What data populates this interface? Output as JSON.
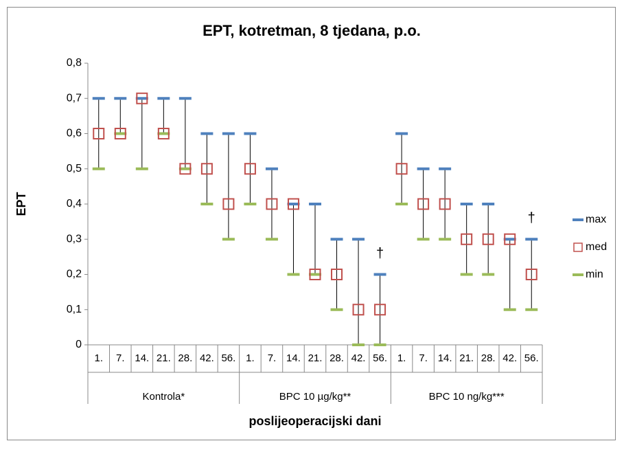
{
  "chart_data": {
    "type": "high-low-median",
    "title": "EPT, kotretman, 8 tjedana, p.o.",
    "y_label": "EPT",
    "x_label": "poslijeoperacijski  dani",
    "categories": [
      "1.",
      "7.",
      "14.",
      "21.",
      "28.",
      "42.",
      "56.",
      "1.",
      "7.",
      "14.",
      "21.",
      "28.",
      "42.",
      "56.",
      "1.",
      "7.",
      "14.",
      "21.",
      "28.",
      "42.",
      "56."
    ],
    "groups": [
      "Kontrola*",
      "BPC 10 µg/kg**",
      "BPC 10 ng/kg***"
    ],
    "series": [
      {
        "name": "max",
        "color": "#4f81bd",
        "values": [
          0.7,
          0.7,
          0.7,
          0.7,
          0.7,
          0.6,
          0.6,
          0.6,
          0.5,
          0.4,
          0.4,
          0.3,
          0.3,
          0.2,
          0.6,
          0.5,
          0.5,
          0.4,
          0.4,
          0.3,
          0.3
        ]
      },
      {
        "name": "med",
        "color": "#c0504d",
        "values": [
          0.6,
          0.6,
          0.7,
          0.6,
          0.5,
          0.5,
          0.4,
          0.5,
          0.4,
          0.4,
          0.2,
          0.2,
          0.1,
          0.1,
          0.5,
          0.4,
          0.4,
          0.3,
          0.3,
          0.3,
          0.2
        ]
      },
      {
        "name": "min",
        "color": "#9bbb59",
        "values": [
          0.5,
          0.6,
          0.5,
          0.6,
          0.5,
          0.4,
          0.3,
          0.4,
          0.3,
          0.2,
          0.2,
          0.1,
          0,
          0,
          0.4,
          0.3,
          0.3,
          0.2,
          0.2,
          0.1,
          0.1
        ]
      }
    ],
    "annotations": [
      {
        "text": "†",
        "index": 13
      },
      {
        "text": "†",
        "index": 20
      }
    ],
    "ylim": [
      0,
      0.8
    ],
    "yticks": [
      0,
      {
        "value": 0.1,
        "label": "0,1"
      },
      {
        "value": 0.2,
        "label": "0,2"
      },
      {
        "value": 0.3,
        "label": "0,3"
      },
      {
        "value": 0.4,
        "label": "0,4"
      },
      {
        "value": 0.5,
        "label": "0,5"
      },
      {
        "value": 0.6,
        "label": "0,6"
      },
      {
        "value": 0.7,
        "label": "0,7"
      },
      {
        "value": 0.8,
        "label": "0,8"
      }
    ],
    "legend": "right"
  }
}
